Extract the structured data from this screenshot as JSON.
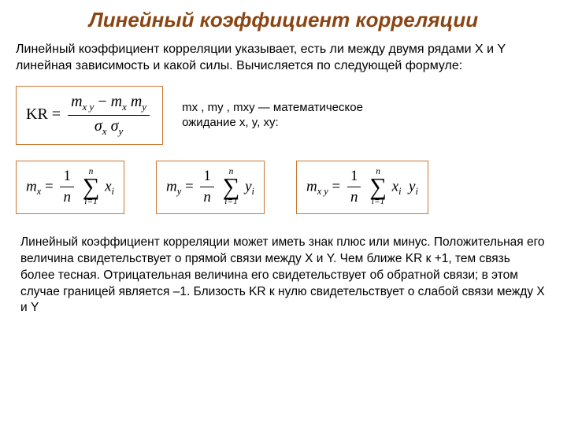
{
  "title": {
    "text": "Линейный коэффициент корреляции",
    "color": "#8b4513"
  },
  "intro": "Линейный коэффициент корреляции указывает, есть ли между двумя рядами X и Y линейная зависимость и какой силы. Вычисляется по следующей формуле:",
  "kr_formula": {
    "lhs": "KR",
    "num_left": "m",
    "num_left_sub": "x y",
    "num_minus": " − ",
    "num_mx": "m",
    "num_mx_sub": "x",
    "num_my": "m",
    "num_my_sub": "y",
    "den_left": "σ",
    "den_left_sub": "x",
    "den_right": "σ",
    "den_right_sub": "y",
    "box_border": "#cc7733"
  },
  "note_text": "mx , my , mxy — математическое ожидание x, y, xy:",
  "mx_formula": {
    "lhs": "m",
    "lhs_sub": "x",
    "frac_num": "1",
    "frac_den": "n",
    "sum_top": "n",
    "sum_bot": "i=1",
    "term": "x",
    "term_sub": "i",
    "box_border": "#cc7733"
  },
  "my_formula": {
    "lhs": "m",
    "lhs_sub": "y",
    "frac_num": "1",
    "frac_den": "n",
    "sum_top": "n",
    "sum_bot": "i=1",
    "term": "y",
    "term_sub": "i",
    "box_border": "#cc7733"
  },
  "mxy_formula": {
    "lhs": "m",
    "lhs_sub": "x y",
    "frac_num": "1",
    "frac_den": "n",
    "sum_top": "n",
    "sum_bot": "i=1",
    "term1": "x",
    "term1_sub": "i",
    "term2": "y",
    "term2_sub": "i",
    "box_border": "#cc7733"
  },
  "conclusion": "Линейный коэффициент корреляции может иметь знак плюс или минус. Положительная его величина свидетельствует о прямой связи между X и Y. Чем ближе KR к +1, тем связь более тесная. Отрицательная величина его свидетельствует об обратной связи; в этом случае границей является –1. Близость KR к нулю свидетельствует о слабой связи между X и Y"
}
